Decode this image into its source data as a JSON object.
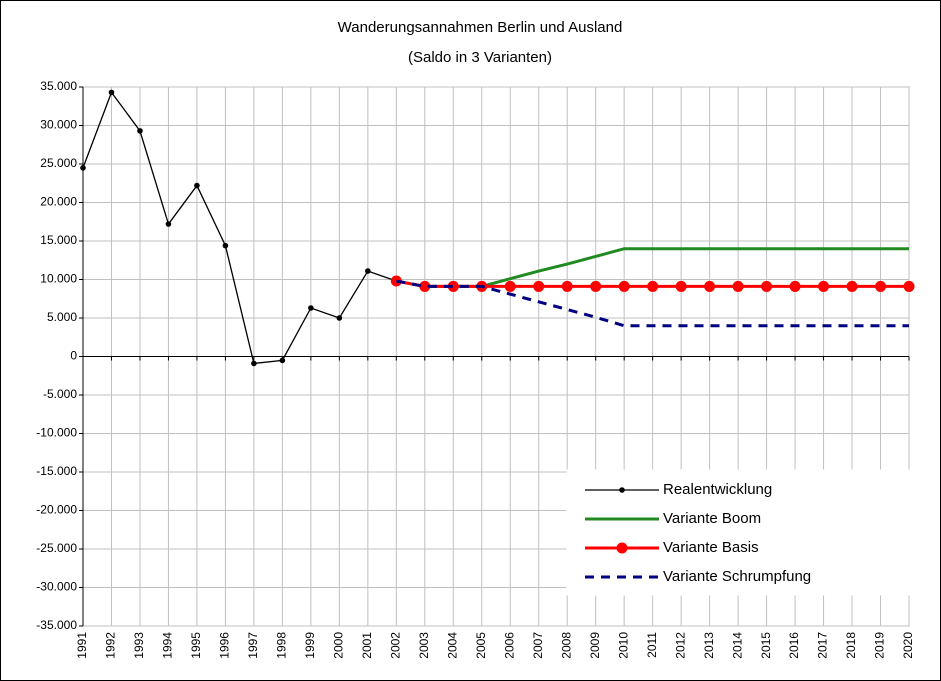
{
  "chart_data": {
    "type": "line",
    "title": "Wanderungsannahmen Berlin und  Ausland",
    "subtitle": "(Saldo in 3 Varianten)",
    "categories": [
      "1991",
      "1992",
      "1993",
      "1994",
      "1995",
      "1996",
      "1997",
      "1998",
      "1999",
      "2000",
      "2001",
      "2002",
      "2003",
      "2004",
      "2005",
      "2006",
      "2007",
      "2008",
      "2009",
      "2010",
      "2011",
      "2012",
      "2013",
      "2014",
      "2015",
      "2016",
      "2017",
      "2018",
      "2019",
      "2020"
    ],
    "series": [
      {
        "name": "Realentwicklung",
        "color": "#000000",
        "values": [
          24500,
          34300,
          29300,
          17200,
          22200,
          14400,
          -900,
          -500,
          6300,
          5000,
          11100,
          9800,
          null,
          null,
          null,
          null,
          null,
          null,
          null,
          null,
          null,
          null,
          null,
          null,
          null,
          null,
          null,
          null,
          null,
          null
        ]
      },
      {
        "name": "Variante Boom",
        "color": "#218a21",
        "values": [
          null,
          null,
          null,
          null,
          null,
          null,
          null,
          null,
          null,
          null,
          null,
          9800,
          9100,
          9100,
          9100,
          10100,
          11100,
          12000,
          13000,
          14000,
          14000,
          14000,
          14000,
          14000,
          14000,
          14000,
          14000,
          14000,
          14000,
          14000
        ]
      },
      {
        "name": "Variante Basis",
        "color": "#ff0000",
        "values": [
          null,
          null,
          null,
          null,
          null,
          null,
          null,
          null,
          null,
          null,
          null,
          9800,
          9100,
          9100,
          9100,
          9100,
          9100,
          9100,
          9100,
          9100,
          9100,
          9100,
          9100,
          9100,
          9100,
          9100,
          9100,
          9100,
          9100,
          9100
        ]
      },
      {
        "name": "Variante Schrumpfung",
        "color": "#000080",
        "values": [
          null,
          null,
          null,
          null,
          null,
          null,
          null,
          null,
          null,
          null,
          null,
          9800,
          9100,
          9100,
          9100,
          8100,
          7100,
          6100,
          5100,
          4000,
          4000,
          4000,
          4000,
          4000,
          4000,
          4000,
          4000,
          4000,
          4000,
          4000
        ]
      }
    ],
    "ylim": [
      -35000,
      35000
    ],
    "yticks": [
      {
        "value": 35000,
        "label": "35.000"
      },
      {
        "value": 30000,
        "label": "30.000"
      },
      {
        "value": 25000,
        "label": "25.000"
      },
      {
        "value": 20000,
        "label": "20.000"
      },
      {
        "value": 15000,
        "label": "15.000"
      },
      {
        "value": 10000,
        "label": "10.000"
      },
      {
        "value": 5000,
        "label": "5.000"
      },
      0,
      {
        "value": -5000,
        "label": "-5.000"
      },
      {
        "value": -10000,
        "label": "-10.000"
      },
      {
        "value": -15000,
        "label": "-15.000"
      },
      {
        "value": -20000,
        "label": "-20.000"
      },
      {
        "value": -25000,
        "label": "-25.000"
      },
      {
        "value": -30000,
        "label": "-30.000"
      },
      {
        "value": -35000,
        "label": "-35.000"
      }
    ],
    "grid": true,
    "legend": "lower right"
  }
}
